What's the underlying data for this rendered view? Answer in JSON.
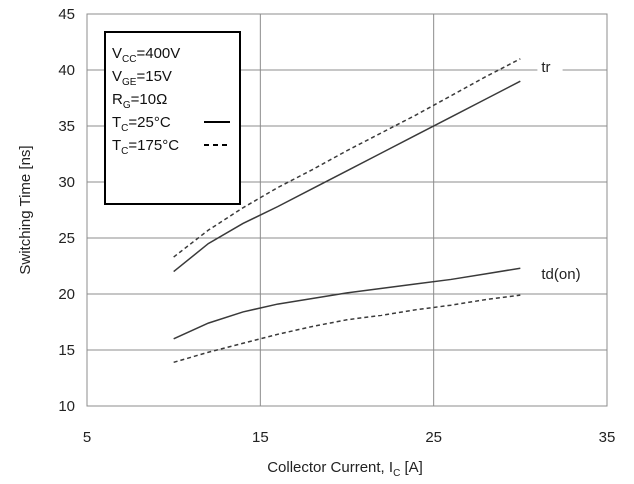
{
  "chart_data": {
    "type": "line",
    "xlabel": {
      "main": "Collector Current, I",
      "sub": "C",
      "suffix": " [A]"
    },
    "ylabel": "Switching Time [ns]",
    "xlim": [
      5,
      35
    ],
    "ylim": [
      10,
      45
    ],
    "xticks": [
      "5",
      "15",
      "25",
      "35"
    ],
    "yticks": [
      "10",
      "15",
      "20",
      "25",
      "30",
      "35",
      "40",
      "45"
    ],
    "grid": true,
    "series": [
      {
        "name": "tr",
        "condition": "TC=25°C",
        "dash": "solid",
        "x": [
          10,
          12,
          14,
          16,
          18,
          20,
          22,
          24,
          26,
          28,
          30
        ],
        "y": [
          22.0,
          24.5,
          26.3,
          27.8,
          29.4,
          31.0,
          32.6,
          34.2,
          35.8,
          37.4,
          39.0
        ]
      },
      {
        "name": "tr",
        "condition": "TC=175°C",
        "dash": "dashed",
        "x": [
          10,
          12,
          14,
          16,
          18,
          20,
          22,
          24,
          26,
          28,
          30
        ],
        "y": [
          23.3,
          25.7,
          27.7,
          29.5,
          31.1,
          32.8,
          34.4,
          36.0,
          37.7,
          39.4,
          41.0
        ]
      },
      {
        "name": "td(on)",
        "condition": "TC=25°C",
        "dash": "solid",
        "x": [
          10,
          12,
          14,
          16,
          18,
          20,
          22,
          24,
          26,
          28,
          30
        ],
        "y": [
          16.0,
          17.4,
          18.4,
          19.1,
          19.6,
          20.1,
          20.5,
          20.9,
          21.3,
          21.8,
          22.3
        ]
      },
      {
        "name": "td(on)",
        "condition": "TC=175°C",
        "dash": "dashed",
        "x": [
          10,
          12,
          14,
          16,
          18,
          20,
          22,
          24,
          26,
          28,
          30
        ],
        "y": [
          13.9,
          14.8,
          15.6,
          16.4,
          17.1,
          17.7,
          18.1,
          18.6,
          19.0,
          19.5,
          19.9
        ]
      }
    ],
    "annotations": [
      {
        "text": "tr",
        "x": 31.1,
        "y": 40.0
      },
      {
        "text": "td(on)",
        "x": 31.1,
        "y": 21.5
      }
    ],
    "legend": {
      "placement": "top-left",
      "lines": [
        {
          "main": "V",
          "sub": "CC",
          "rest": "=400V"
        },
        {
          "main": "V",
          "sub": "GE",
          "rest": "=15V"
        },
        {
          "main": "R",
          "sub": "G",
          "rest": "=10Ω"
        },
        {
          "main": "T",
          "sub": "C",
          "rest": "=25°C",
          "dash": "solid"
        },
        {
          "main": "T",
          "sub": "C",
          "rest": "=175°C",
          "dash": "dashed"
        }
      ]
    },
    "colors": {
      "line": "#3a3a3a",
      "grid": "#8c8c8c",
      "frame": "#8c8c8c",
      "text": "#222222"
    }
  }
}
